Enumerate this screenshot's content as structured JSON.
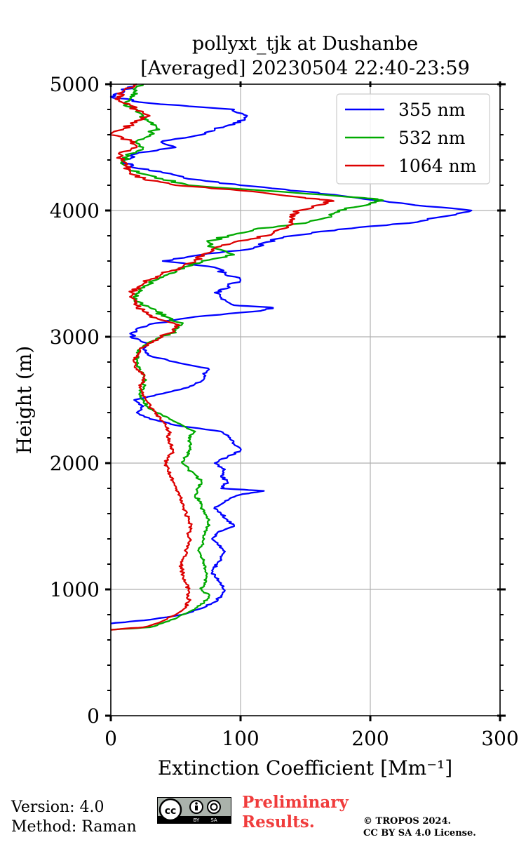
{
  "chart_data": {
    "type": "line",
    "title": [
      "pollyxt_tjk at Dushanbe",
      "[Averaged] 20230504 22:40-23:59"
    ],
    "xlabel": "Extinction Coefficient [Mm⁻¹]",
    "ylabel": "Height (m)",
    "xlim": [
      0,
      300
    ],
    "ylim": [
      0,
      5000
    ],
    "xticks": [
      0,
      100,
      200,
      300
    ],
    "yticks": [
      0,
      1000,
      2000,
      3000,
      4000,
      5000
    ],
    "grid": true,
    "legend_position": "top-right",
    "series": [
      {
        "name": "355 nm",
        "color": "#0000ff",
        "height": [
          730,
          760,
          800,
          850,
          900,
          950,
          1000,
          1050,
          1100,
          1150,
          1200,
          1250,
          1300,
          1350,
          1400,
          1450,
          1500,
          1550,
          1600,
          1650,
          1700,
          1750,
          1780,
          1800,
          1850,
          1900,
          1950,
          2000,
          2050,
          2100,
          2150,
          2200,
          2250,
          2300,
          2350,
          2400,
          2450,
          2500,
          2550,
          2600,
          2650,
          2700,
          2750,
          2800,
          2850,
          2900,
          2950,
          3000,
          3050,
          3100,
          3150,
          3200,
          3230,
          3250,
          3300,
          3350,
          3400,
          3450,
          3500,
          3550,
          3600,
          3650,
          3700,
          3750,
          3800,
          3850,
          3900,
          3950,
          4000,
          4050,
          4100,
          4150,
          4200,
          4250,
          4300,
          4350,
          4400,
          4450,
          4500,
          4550,
          4600,
          4650,
          4700,
          4750,
          4800,
          4850,
          4900,
          4950,
          5000
        ],
        "values": [
          0,
          30,
          55,
          70,
          80,
          85,
          87,
          85,
          80,
          78,
          82,
          85,
          88,
          83,
          78,
          82,
          95,
          90,
          85,
          80,
          88,
          100,
          118,
          85,
          90,
          85,
          88,
          80,
          90,
          100,
          95,
          92,
          85,
          50,
          30,
          20,
          25,
          18,
          40,
          60,
          70,
          72,
          75,
          50,
          30,
          25,
          28,
          15,
          20,
          30,
          60,
          110,
          125,
          95,
          85,
          80,
          90,
          100,
          88,
          80,
          40,
          70,
          110,
          120,
          140,
          175,
          230,
          255,
          278,
          230,
          190,
          150,
          100,
          60,
          40,
          15,
          10,
          20,
          50,
          40,
          70,
          80,
          100,
          105,
          95,
          30,
          0,
          10,
          20
        ]
      },
      {
        "name": "532 nm",
        "color": "#00aa00",
        "height": [
          680,
          700,
          750,
          800,
          850,
          900,
          950,
          1000,
          1050,
          1100,
          1150,
          1200,
          1250,
          1300,
          1350,
          1400,
          1450,
          1500,
          1550,
          1600,
          1650,
          1700,
          1750,
          1800,
          1850,
          1900,
          1950,
          2000,
          2050,
          2100,
          2150,
          2200,
          2250,
          2300,
          2350,
          2400,
          2450,
          2500,
          2550,
          2600,
          2650,
          2700,
          2750,
          2800,
          2850,
          2900,
          2950,
          3000,
          3050,
          3100,
          3150,
          3200,
          3250,
          3300,
          3350,
          3400,
          3450,
          3500,
          3550,
          3600,
          3650,
          3700,
          3750,
          3800,
          3850,
          3900,
          3950,
          4000,
          4050,
          4080,
          4100,
          4150,
          4200,
          4250,
          4300,
          4350,
          4400,
          4450,
          4500,
          4550,
          4600,
          4650,
          4700,
          4750,
          4800,
          4850,
          4900,
          4950,
          5000
        ],
        "values": [
          0,
          30,
          45,
          55,
          65,
          72,
          76,
          70,
          72,
          74,
          73,
          72,
          70,
          68,
          70,
          72,
          73,
          75,
          76,
          72,
          70,
          68,
          65,
          67,
          70,
          66,
          60,
          55,
          58,
          60,
          62,
          60,
          65,
          55,
          45,
          35,
          28,
          25,
          22,
          25,
          26,
          25,
          22,
          20,
          20,
          22,
          28,
          40,
          50,
          55,
          45,
          35,
          25,
          20,
          22,
          25,
          35,
          45,
          55,
          70,
          95,
          80,
          75,
          90,
          110,
          150,
          170,
          175,
          200,
          210,
          195,
          130,
          60,
          40,
          20,
          12,
          10,
          15,
          25,
          20,
          30,
          35,
          30,
          25,
          20,
          10,
          15,
          20,
          25
        ]
      },
      {
        "name": "1064 nm",
        "color": "#dd0000",
        "height": [
          680,
          700,
          750,
          800,
          850,
          900,
          950,
          1000,
          1050,
          1100,
          1150,
          1200,
          1250,
          1300,
          1350,
          1400,
          1450,
          1500,
          1550,
          1600,
          1650,
          1700,
          1750,
          1800,
          1850,
          1900,
          1950,
          2000,
          2050,
          2100,
          2150,
          2200,
          2250,
          2300,
          2350,
          2400,
          2450,
          2500,
          2550,
          2600,
          2650,
          2700,
          2750,
          2800,
          2850,
          2900,
          2950,
          3000,
          3050,
          3100,
          3150,
          3200,
          3250,
          3300,
          3350,
          3400,
          3450,
          3500,
          3550,
          3600,
          3650,
          3700,
          3750,
          3800,
          3850,
          3900,
          3950,
          4000,
          4050,
          4080,
          4100,
          4150,
          4200,
          4250,
          4300,
          4350,
          4400,
          4450,
          4500,
          4550,
          4600,
          4650,
          4700,
          4750,
          4800,
          4850,
          4900,
          4950,
          5000
        ],
        "values": [
          0,
          25,
          40,
          50,
          57,
          60,
          60,
          60,
          58,
          56,
          55,
          54,
          56,
          58,
          60,
          61,
          60,
          62,
          60,
          58,
          56,
          55,
          52,
          50,
          48,
          46,
          44,
          42,
          45,
          48,
          46,
          44,
          45,
          42,
          38,
          35,
          30,
          27,
          24,
          22,
          25,
          26,
          20,
          18,
          20,
          22,
          30,
          40,
          48,
          50,
          35,
          25,
          20,
          18,
          16,
          22,
          30,
          40,
          55,
          65,
          70,
          80,
          95,
          120,
          130,
          140,
          138,
          145,
          165,
          170,
          150,
          110,
          50,
          25,
          15,
          12,
          8,
          6,
          20,
          15,
          0,
          10,
          20,
          30,
          20,
          10,
          5,
          10,
          20
        ]
      }
    ]
  },
  "footer": {
    "version": "Version: 4.0",
    "method": "Method: Raman",
    "license_badge": "cc-by-sa",
    "preliminary_1": "Preliminary",
    "preliminary_2": "Results.",
    "copyright_1": "© TROPOS 2024.",
    "copyright_2": "CC BY SA 4.0 License."
  }
}
